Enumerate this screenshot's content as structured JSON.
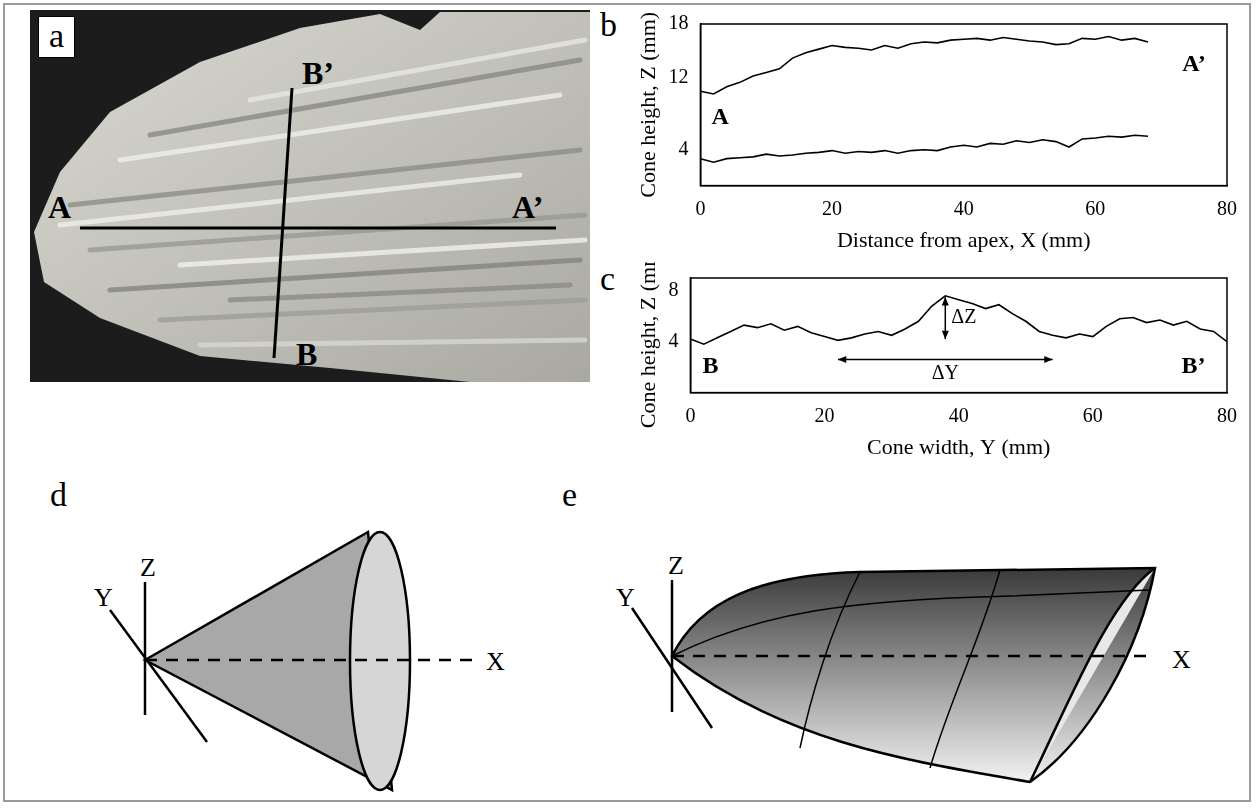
{
  "panel_letters": [
    "a",
    "b",
    "c",
    "d",
    "e"
  ],
  "photo": {
    "section_labels": [
      "A",
      "A’",
      "B",
      "B’"
    ]
  },
  "chart_data": [
    {
      "type": "line",
      "xlabel": "Distance from apex, X (mm)",
      "ylabel": "Cone height, Z (mm)",
      "x": [
        0,
        2,
        4,
        6,
        8,
        10,
        12,
        14,
        16,
        18,
        20,
        22,
        24,
        26,
        28,
        30,
        32,
        34,
        36,
        38,
        40,
        42,
        44,
        46,
        48,
        50,
        52,
        54,
        56,
        58,
        60,
        62,
        64,
        66,
        68
      ],
      "series": [
        {
          "color": "#000000",
          "values": [
            10.5,
            10.2,
            11,
            11.5,
            12.2,
            12.6,
            13,
            14.2,
            14.8,
            15.2,
            15.6,
            15.4,
            15.3,
            15.1,
            15.6,
            15.3,
            15.8,
            16,
            15.9,
            16.2,
            16.3,
            16.4,
            16.2,
            16.5,
            16.3,
            16.1,
            16,
            15.7,
            15.8,
            16.4,
            16.3,
            16.6,
            16.2,
            16.4,
            16
          ]
        },
        {
          "color": "#000000",
          "values": [
            3,
            2.6,
            3,
            3.1,
            3.2,
            3.5,
            3.3,
            3.4,
            3.6,
            3.7,
            3.9,
            3.6,
            3.8,
            3.7,
            3.9,
            3.6,
            3.9,
            4,
            3.9,
            4.3,
            4.5,
            4.3,
            4.7,
            4.6,
            5,
            4.8,
            5.1,
            4.9,
            4.3,
            5.2,
            5.3,
            5.5,
            5.4,
            5.6,
            5.5
          ]
        }
      ],
      "xlim": [
        0,
        80
      ],
      "xticks": [
        0,
        20,
        40,
        60,
        80
      ],
      "ylim": [
        0,
        18
      ],
      "yticks": [
        4,
        12,
        18
      ],
      "grid": false,
      "annotations": [
        {
          "text": "A",
          "x": 3,
          "y": 7.5
        },
        {
          "text": "A’",
          "x": 75,
          "y": 13.5
        }
      ]
    },
    {
      "type": "line",
      "xlabel": "Cone width, Y (mm)",
      "ylabel": "Cone height, Z (mm)",
      "x": [
        0,
        2,
        4,
        6,
        8,
        10,
        12,
        14,
        16,
        18,
        20,
        22,
        24,
        26,
        28,
        30,
        32,
        34,
        36,
        38,
        40,
        42,
        44,
        46,
        48,
        50,
        52,
        54,
        56,
        58,
        60,
        62,
        64,
        66,
        68,
        70,
        72,
        74,
        76,
        78,
        80
      ],
      "series": [
        {
          "color": "#000000",
          "values": [
            4.2,
            3.8,
            4.3,
            4.8,
            5.3,
            5.1,
            5.4,
            4.9,
            5.2,
            4.7,
            4.4,
            4.1,
            4.3,
            4.6,
            4.8,
            4.5,
            5,
            5.6,
            6.8,
            7.6,
            7.3,
            7,
            6.6,
            6.9,
            6.2,
            5.6,
            4.8,
            4.5,
            4.3,
            4.6,
            4.4,
            5.2,
            5.8,
            5.9,
            5.5,
            5.7,
            5.3,
            5.6,
            5,
            4.8,
            4
          ]
        }
      ],
      "xlim": [
        0,
        80
      ],
      "xticks": [
        0,
        20,
        40,
        60,
        80
      ],
      "ylim": [
        0,
        9
      ],
      "yticks": [
        4,
        8
      ],
      "grid": false,
      "annotations": [
        {
          "text": "B",
          "x": 3,
          "y": 2
        },
        {
          "text": "B’",
          "x": 75,
          "y": 2
        },
        {
          "text": "ΔZ",
          "x": 38,
          "y": [
            4.2,
            7.5
          ]
        },
        {
          "text": "ΔY",
          "x": [
            22,
            54
          ],
          "y": 2.6
        }
      ]
    }
  ],
  "diagrams": [
    {
      "axis_labels": [
        "X",
        "Y",
        "Z"
      ]
    },
    {
      "axis_labels": [
        "X",
        "Y",
        "Z"
      ]
    }
  ]
}
